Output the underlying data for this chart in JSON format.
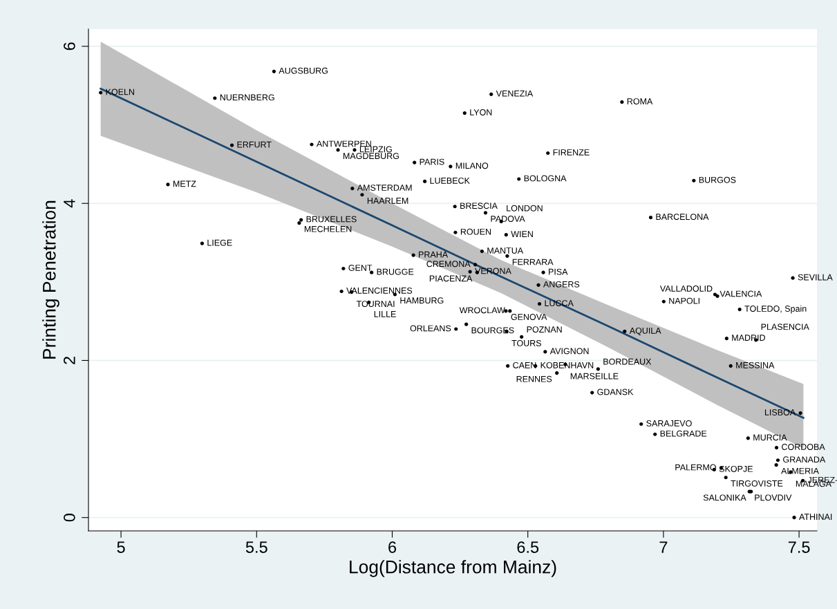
{
  "chart_data": {
    "type": "scatter",
    "xlabel": "Log(Distance from Mainz)",
    "ylabel": "Printing Penetration",
    "xlim": [
      4.88,
      7.566
    ],
    "ylim": [
      -0.17,
      6.22
    ],
    "xticks": [
      5,
      5.5,
      6,
      6.5,
      7,
      7.5
    ],
    "yticks": [
      0,
      2,
      4,
      6
    ],
    "grid": "y",
    "series": [
      {
        "type": "line",
        "color": "#1a476f",
        "x": [
          4.925,
          5.5,
          6.0,
          6.4,
          6.8,
          7.2,
          7.516
        ],
        "values": [
          5.46,
          4.53,
          3.72,
          3.07,
          2.43,
          1.78,
          1.27
        ],
        "lower": [
          4.86,
          4.14,
          3.45,
          2.86,
          2.16,
          1.43,
          0.88
        ],
        "upper": [
          6.06,
          4.93,
          4.0,
          3.28,
          2.7,
          2.13,
          1.7
        ]
      },
      {
        "color": "#000000",
        "marker": "circle",
        "x": [
          4.925,
          5.564,
          5.346,
          5.409,
          5.703,
          5.8,
          5.861,
          6.082,
          5.173,
          5.853,
          5.889,
          6.12,
          6.365,
          6.847,
          6.267,
          6.574,
          6.215,
          6.467,
          7.112,
          6.231,
          6.344,
          6.402,
          6.953,
          6.233,
          6.42,
          5.664,
          5.657,
          6.078,
          5.82,
          5.924,
          6.331,
          6.424,
          6.306,
          6.287,
          6.313,
          6.557,
          6.539,
          5.813,
          5.85,
          6.01,
          5.914,
          6.543,
          6.419,
          6.434,
          6.273,
          6.235,
          6.422,
          6.477,
          6.564,
          7.001,
          7.19,
          7.199,
          7.281,
          6.857,
          7.233,
          7.341,
          6.426,
          6.528,
          6.638,
          6.759,
          6.607,
          7.248,
          6.737,
          7.505,
          6.918,
          6.969,
          7.312,
          7.417,
          7.422,
          7.416,
          7.469,
          7.514,
          7.187,
          7.213,
          7.23,
          7.317,
          7.323,
          7.482,
          7.477,
          5.299
        ],
        "values": [
          5.41,
          5.68,
          5.34,
          4.74,
          4.75,
          4.68,
          4.68,
          4.52,
          4.24,
          4.19,
          4.11,
          4.28,
          5.39,
          5.29,
          5.15,
          4.64,
          4.47,
          4.31,
          4.29,
          3.96,
          3.88,
          3.77,
          3.82,
          3.63,
          3.6,
          3.79,
          3.75,
          3.34,
          3.17,
          3.12,
          3.39,
          3.33,
          3.22,
          3.13,
          3.12,
          3.12,
          2.96,
          2.88,
          2.87,
          2.84,
          2.74,
          2.72,
          2.63,
          2.63,
          2.46,
          2.4,
          2.37,
          2.3,
          2.11,
          2.75,
          2.84,
          2.82,
          2.65,
          2.37,
          2.28,
          2.26,
          1.93,
          1.93,
          1.95,
          1.89,
          1.84,
          1.93,
          1.59,
          1.33,
          1.19,
          1.06,
          1.01,
          0.89,
          0.73,
          0.67,
          0.58,
          0.47,
          0.61,
          0.63,
          0.51,
          0.33,
          0.33,
          0.0,
          3.05,
          3.49
        ],
        "value_labels": [
          "KOELN",
          "AUGSBURG",
          "NUERNBERG",
          "ERFURT",
          "ANTWERPEN",
          "MAGDEBURG",
          "LEIPZIG",
          "PARIS",
          "METZ",
          "AMSTERDAM",
          "HAARLEM",
          "LUEBECK",
          "VENEZIA",
          "ROMA",
          "LYON",
          "FIRENZE",
          "MILANO",
          "BOLOGNA",
          "BURGOS",
          "BRESCIA",
          "PADOVA",
          "LONDON",
          "BARCELONA",
          "ROUEN",
          "WIEN",
          "BRUXELLES",
          "MECHELEN",
          "PRAHA",
          "GENT",
          "BRUGGE",
          "MANTUA",
          "FERRARA",
          "CREMONA",
          "VERONA",
          "PIACENZA",
          "PISA",
          "ANGERS",
          "VALENCIENNES",
          "TOURNAI",
          "HAMBURG",
          "LILLE",
          "LUCCA",
          "GENOVA",
          "WROCLAW",
          "BOURGES",
          "ORLEANS",
          "TOURS",
          "POZNAN",
          "AVIGNON",
          "NAPOLI",
          "VALENCIA",
          "VALLADOLID",
          "TOLEDO, Spain",
          "AQUILA",
          "MADRID",
          "PLASENCIA",
          "CAEN",
          "KOBENHAVN",
          "MARSEILLE",
          "BORDEAUX",
          "RENNES",
          "MESSINA",
          "GDANSK",
          "LISBOA",
          "SARAJEVO",
          "BELGRADE",
          "MURCIA",
          "CORDOBA",
          "GRANADA",
          "ALMERIA",
          "MALAGA",
          "JEREZ-",
          "SKOPJE",
          "PALERMO",
          "TIRGOVISTE",
          "PLOVDIV",
          "SALONIKA",
          "ATHINAI",
          "SEVILLA",
          "LIEGE"
        ]
      }
    ]
  }
}
